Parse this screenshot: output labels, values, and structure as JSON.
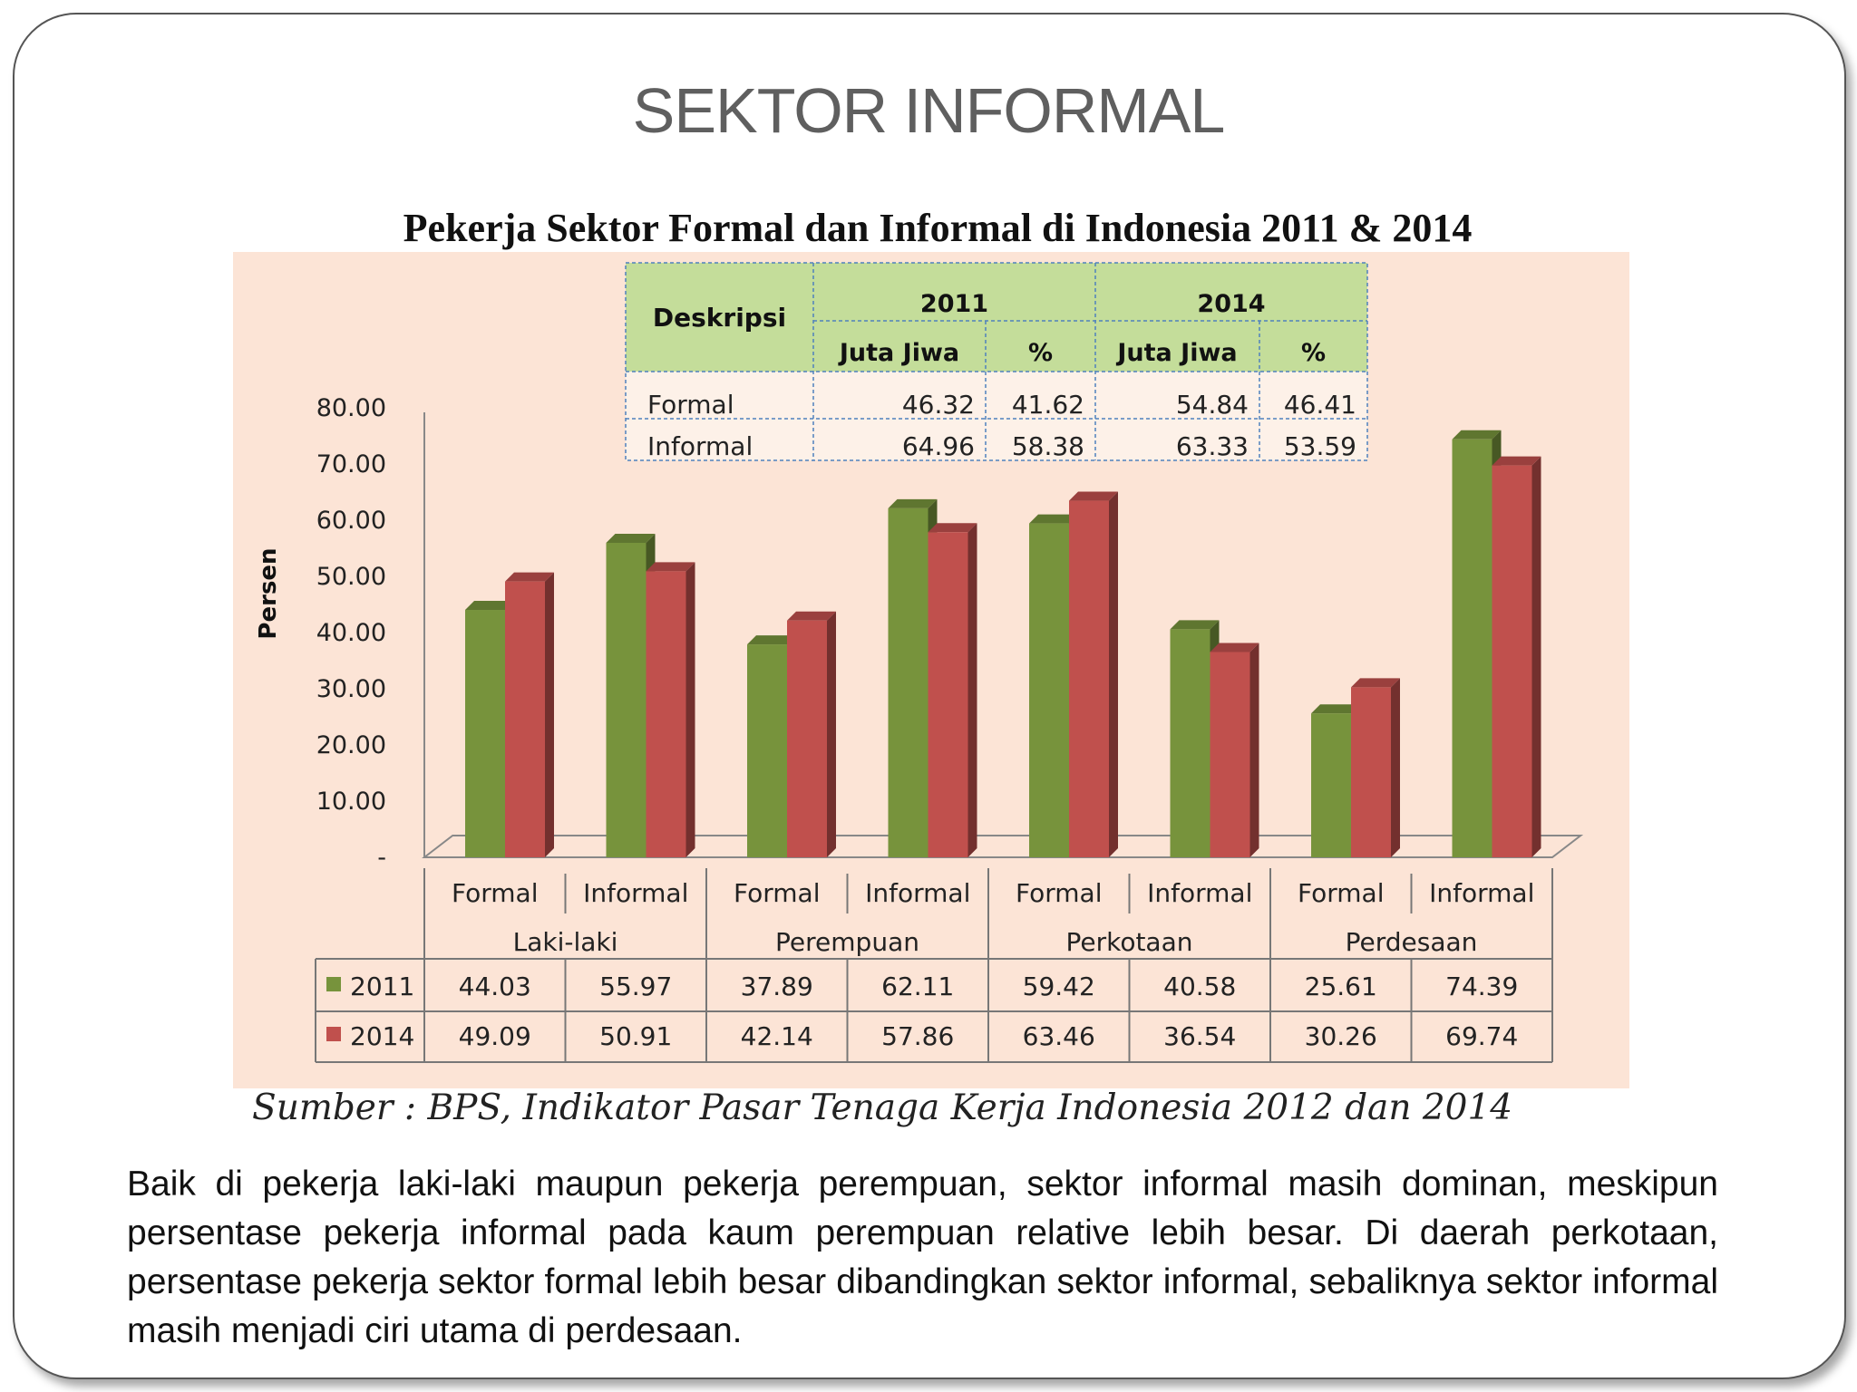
{
  "slide": {
    "title": "SEKTOR INFORMAL",
    "source": "Sumber : BPS, Indikator Pasar Tenaga Kerja Indonesia 2012 dan 2014",
    "body": "Baik di pekerja laki-laki maupun pekerja perempuan, sektor informal masih dominan, meskipun persentase pekerja informal pada kaum perempuan relative lebih besar. Di daerah perkotaan, persentase pekerja sektor formal lebih besar dibandingkan sektor informal, sebaliknya sektor informal masih menjadi ciri  utama di perdesaan."
  },
  "inset_table": {
    "header_desc": "Deskripsi",
    "years": [
      "2011",
      "2014"
    ],
    "subheaders": [
      "Juta Jiwa",
      "%",
      "Juta Jiwa",
      "%"
    ],
    "rows": [
      {
        "label": "Formal",
        "values": [
          "46.32",
          "41.62",
          "54.84",
          "46.41"
        ]
      },
      {
        "label": "Informal",
        "values": [
          "64.96",
          "58.38",
          "63.33",
          "53.59"
        ]
      }
    ]
  },
  "chart_data": {
    "type": "bar",
    "title": "Pekerja Sektor Formal dan Informal di Indonesia 2011 & 2014",
    "ylabel": "Persen",
    "ylim": [
      0,
      80
    ],
    "yticks": [
      "-",
      "10.00",
      "20.00",
      "30.00",
      "40.00",
      "50.00",
      "60.00",
      "70.00",
      "80.00"
    ],
    "categories": [
      "Formal",
      "Informal",
      "Formal",
      "Informal",
      "Formal",
      "Informal",
      "Formal",
      "Informal"
    ],
    "groups": [
      "Laki-laki",
      "Perempuan",
      "Perkotaan",
      "Perdesaan"
    ],
    "series": [
      {
        "name": "2011",
        "color": "#77933c",
        "values": [
          44.03,
          55.97,
          37.89,
          62.11,
          59.42,
          40.58,
          25.61,
          74.39
        ],
        "labels": [
          "44.03",
          "55.97",
          "37.89",
          "62.11",
          "59.42",
          "40.58",
          "25.61",
          "74.39"
        ]
      },
      {
        "name": "2014",
        "color": "#c0504d",
        "values": [
          49.09,
          50.91,
          42.14,
          57.86,
          63.46,
          36.54,
          30.26,
          69.74
        ],
        "labels": [
          "49.09",
          "50.91",
          "42.14",
          "57.86",
          "63.46",
          "36.54",
          "30.26",
          "69.74"
        ]
      }
    ],
    "background": "#fce4d6",
    "legend": "data-table"
  }
}
